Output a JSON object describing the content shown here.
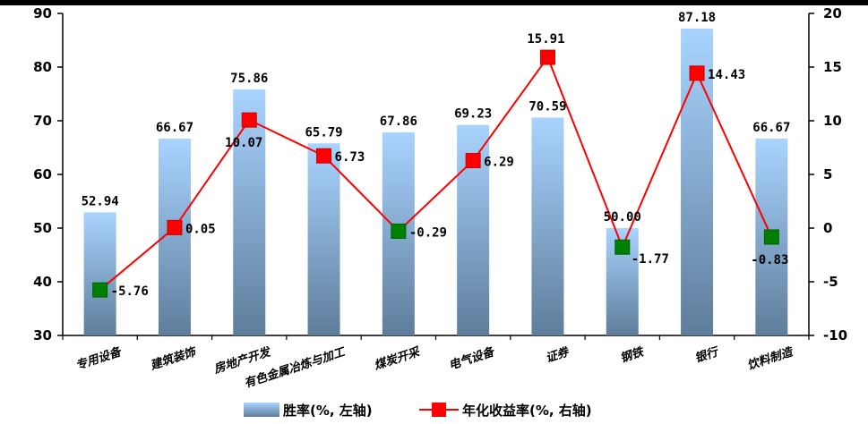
{
  "chart_data": {
    "type": "bar",
    "categories": [
      "专用设备",
      "建筑装饰",
      "房地产开发",
      "有色金属冶炼与加工",
      "煤炭开采",
      "电气设备",
      "证券",
      "钢铁",
      "银行",
      "饮料制造"
    ],
    "series": [
      {
        "name": "胜率(%, 左轴)",
        "type": "bar",
        "axis": "left",
        "values": [
          52.94,
          66.67,
          75.86,
          65.79,
          67.86,
          69.23,
          70.59,
          50.0,
          87.18,
          66.67
        ],
        "labels": [
          "52.94",
          "66.67",
          "75.86",
          "65.79",
          "67.86",
          "69.23",
          "70.59",
          "50.00",
          "87.18",
          "66.67"
        ]
      },
      {
        "name": "年化收益率(%, 右轴)",
        "type": "line",
        "axis": "right",
        "values": [
          -5.76,
          0.05,
          10.07,
          6.73,
          -0.29,
          6.29,
          15.91,
          -1.77,
          14.43,
          -0.83
        ],
        "labels": [
          "-5.76",
          "0.05",
          "10.07",
          "6.73",
          "-0.29",
          "6.29",
          "15.91",
          "-1.77",
          "14.43",
          "-0.83"
        ]
      }
    ],
    "y_left": {
      "ylim": [
        30,
        90
      ],
      "ticks": [
        "30",
        "40",
        "50",
        "60",
        "70",
        "80",
        "90"
      ]
    },
    "y_right": {
      "ylim": [
        -10,
        20
      ],
      "ticks": [
        "-10",
        "-5",
        "0",
        "5",
        "10",
        "15",
        "20"
      ]
    },
    "legend": {
      "position": "bottom",
      "items": [
        "胜率(%, 左轴)",
        "年化收益率(%, 右轴)"
      ]
    },
    "colors": {
      "bar_top": "#a9d4ff",
      "bar_bottom": "#5e7d9b",
      "line": "#ff0000",
      "marker_positive": "#ff0000",
      "marker_negative": "#008000",
      "marker_border": "#006000"
    },
    "grid": false
  }
}
